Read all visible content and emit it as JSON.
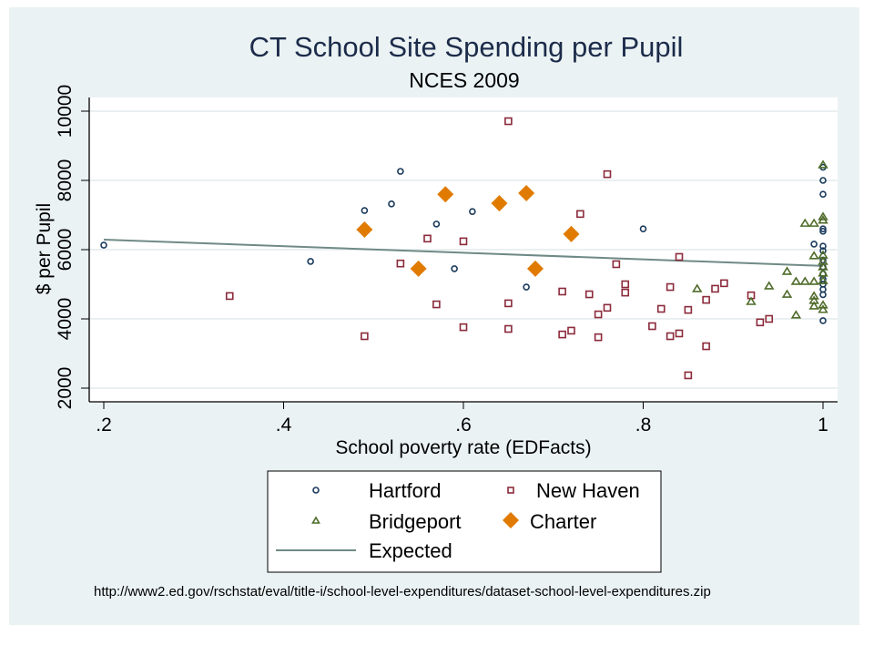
{
  "chart_data": {
    "type": "scatter",
    "title": "CT School Site Spending per Pupil",
    "subtitle": "NCES 2009",
    "xlabel": "School poverty rate (EDFacts)",
    "ylabel": "$ per Pupil",
    "xlim": [
      0.19,
      1.013
    ],
    "ylim": [
      1600,
      10400
    ],
    "x_ticks": [
      0.2,
      0.4,
      0.6,
      0.8,
      1.0
    ],
    "x_tick_labels": [
      ".2",
      ".4",
      ".6",
      ".8",
      "1"
    ],
    "y_ticks": [
      2000,
      4000,
      6000,
      8000,
      10000
    ],
    "y_tick_labels": [
      "2000",
      "4000",
      "6000",
      "8000",
      "10000"
    ],
    "grid": "horizontal",
    "legend_position": "bottom",
    "legend": [
      {
        "label": "Hartford",
        "series": "hartford"
      },
      {
        "label": "New Haven",
        "series": "newhaven"
      },
      {
        "label": "Bridgeport",
        "series": "bridgeport"
      },
      {
        "label": "Charter",
        "series": "charter"
      },
      {
        "label": "Expected",
        "series": "expected"
      }
    ],
    "series": [
      {
        "name": "Hartford",
        "key": "hartford",
        "marker": "circle",
        "color": "#1a3a5c",
        "points": [
          [
            0.2,
            6130
          ],
          [
            0.43,
            5660
          ],
          [
            0.49,
            7130
          ],
          [
            0.52,
            7320
          ],
          [
            0.53,
            8260
          ],
          [
            0.57,
            6740
          ],
          [
            0.59,
            5450
          ],
          [
            0.61,
            7100
          ],
          [
            0.67,
            4920
          ],
          [
            0.8,
            6600
          ],
          [
            0.99,
            6160
          ],
          [
            1.0,
            8380
          ],
          [
            1.0,
            8000
          ],
          [
            1.0,
            7600
          ],
          [
            1.0,
            6600
          ],
          [
            1.0,
            6530
          ],
          [
            1.0,
            6100
          ],
          [
            1.0,
            5970
          ],
          [
            1.0,
            5700
          ],
          [
            1.0,
            5500
          ],
          [
            1.0,
            5300
          ],
          [
            1.0,
            5150
          ],
          [
            1.0,
            5000
          ],
          [
            1.0,
            4850
          ],
          [
            1.0,
            4700
          ],
          [
            1.0,
            3950
          ]
        ]
      },
      {
        "name": "New Haven",
        "key": "newhaven",
        "marker": "square",
        "color": "#8b2a3a",
        "points": [
          [
            0.34,
            4660
          ],
          [
            0.49,
            3500
          ],
          [
            0.53,
            5600
          ],
          [
            0.56,
            6320
          ],
          [
            0.57,
            4420
          ],
          [
            0.6,
            6240
          ],
          [
            0.6,
            3760
          ],
          [
            0.65,
            9710
          ],
          [
            0.65,
            4450
          ],
          [
            0.65,
            3710
          ],
          [
            0.71,
            4790
          ],
          [
            0.71,
            3550
          ],
          [
            0.72,
            3660
          ],
          [
            0.73,
            7030
          ],
          [
            0.74,
            4710
          ],
          [
            0.75,
            4130
          ],
          [
            0.75,
            3470
          ],
          [
            0.76,
            8180
          ],
          [
            0.76,
            4320
          ],
          [
            0.77,
            5580
          ],
          [
            0.78,
            5000
          ],
          [
            0.78,
            4760
          ],
          [
            0.81,
            3790
          ],
          [
            0.82,
            4290
          ],
          [
            0.83,
            4920
          ],
          [
            0.83,
            3500
          ],
          [
            0.84,
            5790
          ],
          [
            0.84,
            3580
          ],
          [
            0.85,
            4260
          ],
          [
            0.85,
            2370
          ],
          [
            0.87,
            4550
          ],
          [
            0.87,
            3210
          ],
          [
            0.88,
            4870
          ],
          [
            0.89,
            5030
          ],
          [
            0.92,
            4680
          ],
          [
            0.93,
            3900
          ],
          [
            0.94,
            4000
          ]
        ]
      },
      {
        "name": "Bridgeport",
        "key": "bridgeport",
        "marker": "triangle",
        "color": "#4f6b2a",
        "points": [
          [
            0.86,
            4870
          ],
          [
            0.92,
            4500
          ],
          [
            0.94,
            4950
          ],
          [
            0.96,
            5370
          ],
          [
            0.96,
            4710
          ],
          [
            0.97,
            5080
          ],
          [
            0.97,
            4110
          ],
          [
            0.98,
            6760
          ],
          [
            0.98,
            5080
          ],
          [
            0.99,
            6760
          ],
          [
            0.99,
            5820
          ],
          [
            0.99,
            5080
          ],
          [
            0.99,
            4660
          ],
          [
            0.99,
            4530
          ],
          [
            0.99,
            4370
          ],
          [
            1.0,
            8450
          ],
          [
            1.0,
            6950
          ],
          [
            1.0,
            6850
          ],
          [
            1.0,
            5840
          ],
          [
            1.0,
            5660
          ],
          [
            1.0,
            5500
          ],
          [
            1.0,
            5320
          ],
          [
            1.0,
            5100
          ],
          [
            1.0,
            4400
          ],
          [
            1.0,
            4270
          ]
        ]
      },
      {
        "name": "Charter",
        "key": "charter",
        "marker": "diamond",
        "color": "#e07b00",
        "points": [
          [
            0.49,
            6580
          ],
          [
            0.55,
            5450
          ],
          [
            0.58,
            7600
          ],
          [
            0.64,
            7340
          ],
          [
            0.67,
            7630
          ],
          [
            0.68,
            5450
          ],
          [
            0.72,
            6450
          ]
        ]
      },
      {
        "name": "Expected",
        "key": "expected",
        "marker": "line",
        "color": "#6f8a86",
        "points": [
          [
            0.2,
            6290
          ],
          [
            1.0,
            5530
          ]
        ]
      }
    ],
    "footnote": "http://www2.ed.gov/rschstat/eval/title-i/school-level-expenditures/dataset-school-level-expenditures.zip"
  }
}
